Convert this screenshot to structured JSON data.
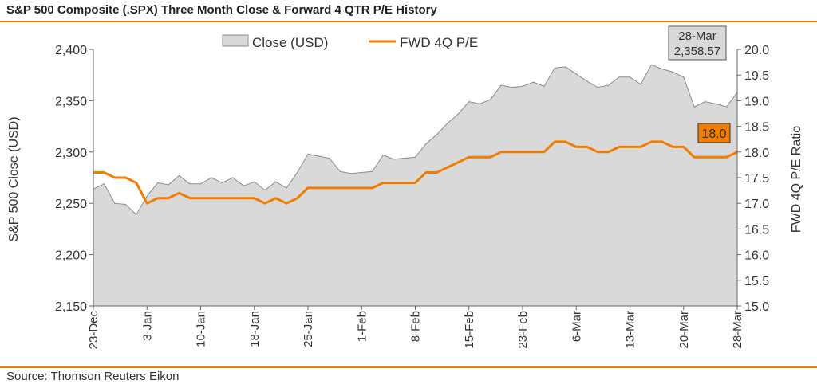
{
  "title": "S&P 500 Composite (.SPX) Three Month Close & Forward 4 QTR P/E History",
  "source": "Source: Thomson Reuters Eikon",
  "colors": {
    "accent": "#f07d00",
    "area_fill": "#d9d9d9",
    "area_stroke": "#8c8c8c"
  },
  "chart_data": {
    "type": "area",
    "legend": [
      "Close (USD)",
      "FWD 4Q P/E"
    ],
    "legend_position": "top-center",
    "ylabel_left": "S&P 500 Close (USD)",
    "ylabel_right": "FWD 4Q P/E Ratio",
    "ylim_left": [
      2150,
      2400
    ],
    "ylim_right": [
      15.0,
      20.0
    ],
    "yticks_left": [
      "2,150",
      "2,200",
      "2,250",
      "2,300",
      "2,350",
      "2,400"
    ],
    "yticks_right": [
      "15.0",
      "15.5",
      "16.0",
      "16.5",
      "17.0",
      "17.5",
      "18.0",
      "18.5",
      "19.0",
      "19.5",
      "20.0"
    ],
    "xticks": [
      "23-Dec",
      "3-Jan",
      "10-Jan",
      "18-Jan",
      "25-Jan",
      "1-Feb",
      "8-Feb",
      "15-Feb",
      "23-Feb",
      "6-Mar",
      "13-Mar",
      "20-Mar",
      "28-Mar"
    ],
    "grid": false,
    "series": [
      {
        "name": "Close (USD)",
        "kind": "area",
        "axis": "left",
        "values": [
          2264,
          2269,
          2250,
          2249,
          2239,
          2257,
          2270,
          2268,
          2277,
          2269,
          2269,
          2275,
          2270,
          2275,
          2267,
          2271,
          2263,
          2271,
          2265,
          2280,
          2298,
          2296,
          2294,
          2281,
          2279,
          2280,
          2281,
          2297,
          2293,
          2294,
          2295,
          2308,
          2317,
          2328,
          2337,
          2349,
          2347,
          2351,
          2365,
          2363,
          2364,
          2368,
          2364,
          2382,
          2383,
          2376,
          2369,
          2363,
          2365,
          2373,
          2373,
          2366,
          2385,
          2381,
          2378,
          2373,
          2344,
          2349,
          2347,
          2344,
          2358
        ]
      },
      {
        "name": "FWD 4Q P/E",
        "kind": "line",
        "axis": "right",
        "values": [
          17.6,
          17.6,
          17.5,
          17.5,
          17.4,
          17.0,
          17.1,
          17.1,
          17.2,
          17.1,
          17.1,
          17.1,
          17.1,
          17.1,
          17.1,
          17.1,
          17.0,
          17.1,
          17.0,
          17.1,
          17.3,
          17.3,
          17.3,
          17.3,
          17.3,
          17.3,
          17.3,
          17.4,
          17.4,
          17.4,
          17.4,
          17.6,
          17.6,
          17.7,
          17.8,
          17.9,
          17.9,
          17.9,
          18.0,
          18.0,
          18.0,
          18.0,
          18.0,
          18.2,
          18.2,
          18.1,
          18.1,
          18.0,
          18.0,
          18.1,
          18.1,
          18.1,
          18.2,
          18.2,
          18.1,
          18.1,
          17.9,
          17.9,
          17.9,
          17.9,
          18.0
        ]
      }
    ],
    "annotations": {
      "close_date": "28-Mar",
      "close_value": "2,358.57",
      "pe_value": "18.0"
    }
  }
}
